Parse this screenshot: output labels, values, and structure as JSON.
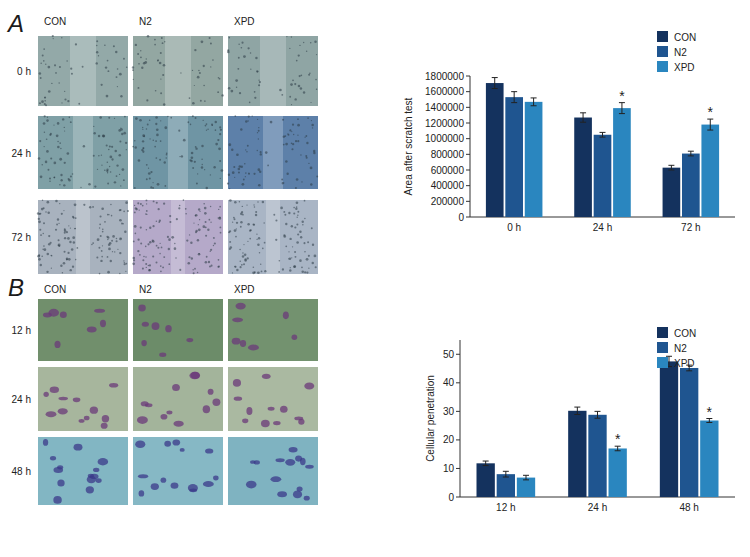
{
  "chart_data": [
    {
      "type": "bar",
      "y_label": "Area after scratch test",
      "categories": [
        "0 h",
        "24 h",
        "72 h"
      ],
      "series": [
        {
          "name": "CON",
          "color": "#14325e",
          "values": [
            1710000,
            1270000,
            630000
          ],
          "errors": [
            70000,
            60000,
            30000
          ],
          "significance": [
            null,
            null,
            null
          ]
        },
        {
          "name": "N2",
          "color": "#1f5590",
          "values": [
            1530000,
            1050000,
            810000
          ],
          "errors": [
            70000,
            30000,
            30000
          ],
          "significance": [
            null,
            null,
            null
          ]
        },
        {
          "name": "XPD",
          "color": "#2a86bf",
          "values": [
            1470000,
            1390000,
            1180000
          ],
          "errors": [
            50000,
            70000,
            70000
          ],
          "significance": [
            null,
            "*",
            "*"
          ]
        }
      ],
      "ylim": [
        0,
        1800000
      ],
      "yticks": [
        0,
        200000,
        400000,
        600000,
        800000,
        1000000,
        1200000,
        1400000,
        1600000,
        1800000
      ],
      "grid": false,
      "legend": "upper right"
    },
    {
      "type": "bar",
      "y_label": "Cellular penetration",
      "categories": [
        "12 h",
        "24 h",
        "48 h"
      ],
      "series": [
        {
          "name": "CON",
          "color": "#14325e",
          "values": [
            11.8,
            30.2,
            47.5
          ],
          "errors": [
            0.8,
            1.3,
            1.8
          ],
          "significance": [
            null,
            null,
            null
          ]
        },
        {
          "name": "N2",
          "color": "#1f5590",
          "values": [
            8,
            28.8,
            45.2
          ],
          "errors": [
            1.0,
            1.2,
            1.0
          ],
          "significance": [
            null,
            null,
            null
          ]
        },
        {
          "name": "XPD",
          "color": "#2a86bf",
          "values": [
            6.8,
            17,
            26.8
          ],
          "errors": [
            0.8,
            0.8,
            0.7
          ],
          "significance": [
            null,
            "*",
            "*"
          ]
        }
      ],
      "ylim": [
        0,
        55
      ],
      "yticks": [
        0,
        10,
        20,
        30,
        40,
        50
      ],
      "grid": false,
      "legend": "upper right"
    }
  ],
  "image_panels": [
    {
      "label": "A",
      "columns": [
        "CON",
        "N2",
        "XPD"
      ],
      "rows": [
        "0 h",
        "24 h",
        "72 h"
      ]
    },
    {
      "label": "B",
      "columns": [
        "CON",
        "N2",
        "XPD"
      ],
      "rows": [
        "12 h",
        "24 h",
        "48 h"
      ]
    }
  ]
}
